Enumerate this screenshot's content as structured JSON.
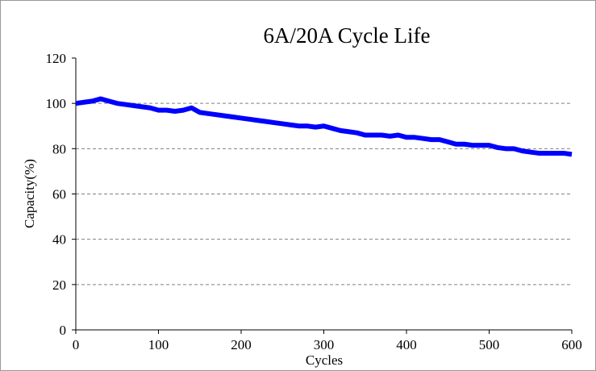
{
  "chart_data": {
    "type": "line",
    "title": "6A/20A Cycle Life",
    "x_label": "Cycles",
    "y_label": "Capacity(%)",
    "x": [
      0,
      10,
      20,
      30,
      40,
      50,
      60,
      70,
      80,
      90,
      100,
      110,
      120,
      130,
      140,
      150,
      160,
      170,
      180,
      190,
      200,
      210,
      220,
      230,
      240,
      250,
      260,
      270,
      280,
      290,
      300,
      310,
      320,
      330,
      340,
      350,
      360,
      370,
      380,
      390,
      400,
      410,
      420,
      430,
      440,
      450,
      460,
      470,
      480,
      490,
      500,
      510,
      520,
      530,
      540,
      550,
      560,
      570,
      580,
      590,
      600
    ],
    "series": [
      {
        "name": "Capacity",
        "color": "#0000ff",
        "values": [
          100,
          100.5,
          101,
          102,
          101,
          100,
          99.5,
          99,
          98.5,
          98,
          97,
          97,
          96.5,
          97,
          98,
          96,
          95.5,
          95,
          94.5,
          94,
          93.5,
          93,
          92.5,
          92,
          91.5,
          91,
          90.5,
          90,
          90,
          89.5,
          90,
          89,
          88,
          87.5,
          87,
          86,
          86,
          86,
          85.5,
          86,
          85,
          85,
          84.5,
          84,
          84,
          83,
          82,
          82,
          81.5,
          81.5,
          81.5,
          80.5,
          80,
          80,
          79,
          78.5,
          78,
          78,
          78,
          78,
          77.5
        ]
      }
    ],
    "xlim": [
      0,
      600
    ],
    "xticks": [
      0,
      100,
      200,
      300,
      400,
      500,
      600
    ],
    "ylim": [
      0,
      120
    ],
    "yticks": [
      0,
      20,
      40,
      60,
      80,
      100,
      120
    ],
    "grid": true
  }
}
